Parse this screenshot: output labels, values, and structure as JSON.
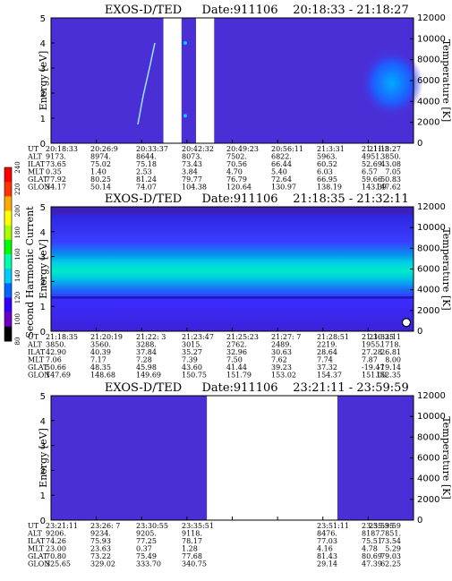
{
  "panels": [
    {
      "title": "EXOS-D/TED",
      "date_label": "Date:911106",
      "time_range": "20:18:33 - 21:18:27",
      "row_labels": [
        "UT",
        "ALT",
        "ILAT",
        "MLT",
        "GLAT",
        "GLON"
      ],
      "rows": {
        "UT": [
          "20:18:33",
          "20:26:9",
          "20:33:37",
          "20:42:32",
          "20:49:23",
          "20:56:11",
          "21:3:31",
          "21:11:3",
          "21:18:27"
        ],
        "ALT": [
          "9173.",
          "8974.",
          "8644.",
          "8073.",
          "7502.",
          "6822.",
          "5963.",
          "4951.",
          "3850."
        ],
        "ILAT": [
          "73.65",
          "75.02",
          "75.18",
          "73.43",
          "70.56",
          "66.44",
          "60.52",
          "52.69",
          "43.08"
        ],
        "MLT": [
          "0.35",
          "1.40",
          "2.53",
          "3.84",
          "4.70",
          "5.40",
          "6.03",
          "6.57",
          "7.05"
        ],
        "GLAT": [
          "77.92",
          "80.25",
          "81.24",
          "79.77",
          "76.79",
          "72.64",
          "66.95",
          "59.66",
          "50.83"
        ],
        "GLON": [
          "34.17",
          "50.14",
          "74.07",
          "104.38",
          "120.64",
          "130.97",
          "138.19",
          "143.39",
          "147.62"
        ]
      },
      "gaps": [
        [
          0.31,
          0.36
        ],
        [
          0.4,
          0.45
        ]
      ],
      "fill": "sparse"
    },
    {
      "title": "EXOS-D/TED",
      "date_label": "Date:911106",
      "time_range": "21:18:35 - 21:32:11",
      "row_labels": [
        "UT",
        "ALT",
        "ILAT",
        "MLT",
        "GLAT",
        "GLON"
      ],
      "rows": {
        "UT": [
          "21:18:35",
          "21:20:19",
          "21:22: 3",
          "21:23:47",
          "21:25:23",
          "21:27: 7",
          "21:28:51",
          "21:30:35",
          "21:32:11"
        ],
        "ALT": [
          "3850.",
          "3560.",
          "3288.",
          "3015.",
          "2762.",
          "2489.",
          "2219.",
          "1955.",
          "1718."
        ],
        "ILAT": [
          "42.90",
          "40.39",
          "37.84",
          "35.27",
          "32.96",
          "30.63",
          "28.64",
          "27.28",
          "26.81"
        ],
        "MLT": [
          "7.06",
          "7.17",
          "7.28",
          "7.39",
          "7.50",
          "7.62",
          "7.74",
          "7.87",
          "8.00"
        ],
        "GLAT": [
          "50.66",
          "48.35",
          "45.98",
          "43.60",
          "41.44",
          "39.23",
          "37.32",
          "-19.47",
          "-19.14"
        ],
        "GLON": [
          "147.69",
          "148.68",
          "149.69",
          "150.75",
          "151.79",
          "153.02",
          "154.37",
          "151.00",
          "152.35"
        ]
      },
      "gaps": [],
      "fill": "dense"
    },
    {
      "title": "EXOS-D/TED",
      "date_label": "Date:911106",
      "time_range": "23:21:11 - 23:59:59",
      "row_labels": [
        "UT",
        "ALT",
        "ILAT",
        "MLT",
        "GLAT",
        "GLON"
      ],
      "rows": {
        "UT": [
          "23:21:11",
          "23:26: 7",
          "23:30:55",
          "23:35:51",
          "",
          "",
          "23:51:11",
          "23:55:35",
          "23:59:59"
        ],
        "ALT": [
          "9206.",
          "9234.",
          "9205.",
          "9118.",
          "",
          "",
          "8476.",
          "8187.",
          "7851."
        ],
        "ILAT": [
          "74.26",
          "75.93",
          "77.25",
          "78.17",
          "",
          "",
          "77.03",
          "75.51",
          "73.54"
        ],
        "MLT": [
          "23.00",
          "23.63",
          "0.37",
          "1.28",
          "",
          "",
          "4.16",
          "4.78",
          "5.29"
        ],
        "GLAT": [
          "70.80",
          "73.22",
          "75.49",
          "77.68",
          "",
          "",
          "81.43",
          "80.69",
          "79.03"
        ],
        "GLON": [
          "325.65",
          "329.02",
          "333.70",
          "340.75",
          "",
          "",
          "29.14",
          "47.39",
          "62.25"
        ]
      },
      "gaps": [
        [
          0.43,
          0.79
        ]
      ],
      "fill": "empty"
    }
  ],
  "axes": {
    "energy_label": "Energy [eV]",
    "temperature_label": "Temperature [K]",
    "energy_ticks": [
      "0",
      "1",
      "2",
      "3",
      "4",
      "5"
    ],
    "temperature_ticks": [
      "0",
      "2000",
      "4000",
      "6000",
      "8000",
      "10000",
      "12000"
    ]
  },
  "colorbar": {
    "label": "Second Harmonic Current",
    "ticks": [
      "80",
      "100",
      "120",
      "140",
      "160",
      "180",
      "200",
      "220",
      "240"
    ],
    "colors": [
      "#000000",
      "#6a00c8",
      "#3300ff",
      "#0066ff",
      "#00ccff",
      "#00ffaa",
      "#00ff00",
      "#aaff00",
      "#ffff00",
      "#ffaa00",
      "#ff3300",
      "#ff0000"
    ]
  },
  "chart_data": [
    {
      "type": "heatmap",
      "title": "EXOS-D/TED Date:911106 20:18:33 - 21:18:27",
      "xlabel": "UT",
      "ylabel": "Energy [eV]",
      "ylim": [
        0,
        5
      ],
      "y2label": "Temperature [K]",
      "y2lim": [
        0,
        12000
      ]
    },
    {
      "type": "heatmap",
      "title": "EXOS-D/TED Date:911106 21:18:35 - 21:32:11",
      "xlabel": "UT",
      "ylabel": "Energy [eV]",
      "ylim": [
        0,
        5
      ],
      "y2label": "Temperature [K]",
      "y2lim": [
        0,
        12000
      ]
    },
    {
      "type": "heatmap",
      "title": "EXOS-D/TED Date:911106 23:21:11 - 23:59:59",
      "xlabel": "UT",
      "ylabel": "Energy [eV]",
      "ylim": [
        0,
        5
      ],
      "y2label": "Temperature [K]",
      "y2lim": [
        0,
        12000
      ]
    }
  ]
}
